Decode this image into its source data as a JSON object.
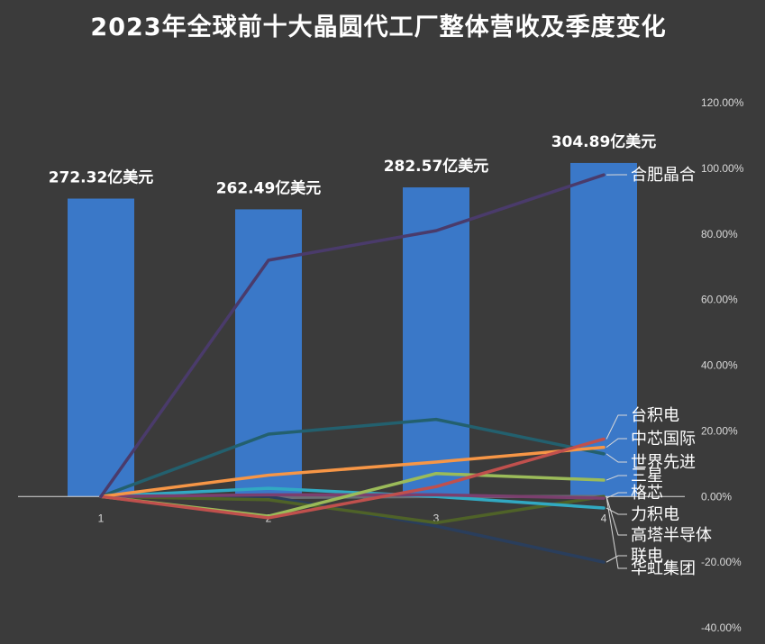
{
  "chart_data": {
    "type": "bar+line",
    "title": "2023年全球前十大晶圆代工厂整体营收及季度变化",
    "categories": [
      "1",
      "2",
      "3",
      "4"
    ],
    "bars": {
      "name": "整体营收",
      "unit": "亿美元",
      "values": [
        272.32,
        262.49,
        282.57,
        304.89
      ],
      "labels": [
        "272.32亿美元",
        "262.49亿美元",
        "282.57亿美元",
        "304.89亿美元"
      ],
      "color": "#3a78c8",
      "ylim": [
        -120,
        360
      ]
    },
    "secondary_axis": {
      "ylim": [
        -0.4,
        1.2
      ],
      "ticks": [
        "120.00%",
        "100.00%",
        "80.00%",
        "60.00%",
        "40.00%",
        "20.00%",
        "0.00%",
        "-20.00%",
        "-40.00%"
      ]
    },
    "series": [
      {
        "name": "合肥晶合",
        "color": "#4a3b6b",
        "values": [
          0,
          0.72,
          0.81,
          0.98
        ]
      },
      {
        "name": "台积电",
        "color": "#c0504d",
        "values": [
          0,
          -0.065,
          0.03,
          0.175
        ]
      },
      {
        "name": "中芯国际",
        "color": "#f79646",
        "values": [
          0,
          0.065,
          0.105,
          0.15
        ]
      },
      {
        "name": "世界先进",
        "color": "#23606e",
        "values": [
          0,
          0.19,
          0.235,
          0.13
        ]
      },
      {
        "name": "三星",
        "color": "#9bbb59",
        "values": [
          0,
          -0.06,
          0.07,
          0.05
        ]
      },
      {
        "name": "格芯",
        "color": "#7b3f6e",
        "values": [
          0,
          0.005,
          0.005,
          -0.005
        ]
      },
      {
        "name": "力积电",
        "color": "#31a9c2",
        "values": [
          0,
          0.025,
          0.0,
          -0.035
        ]
      },
      {
        "name": "高塔半导体",
        "color": "#4f6228",
        "values": [
          0,
          -0.01,
          -0.08,
          0.0
        ]
      },
      {
        "name": "联电",
        "color": "#2a3e5c",
        "values": [
          0,
          0.0,
          -0.09,
          -0.2
        ]
      },
      {
        "name": "华虹集团",
        "color": "#6b6f75",
        "values": [
          0,
          -0.003,
          0.0,
          0.0
        ]
      }
    ],
    "label_order": [
      "合肥晶合",
      "台积电",
      "中芯国际",
      "世界先进",
      "三星",
      "格芯",
      "力积电",
      "高塔半导体",
      "联电",
      "华虹集团"
    ]
  }
}
